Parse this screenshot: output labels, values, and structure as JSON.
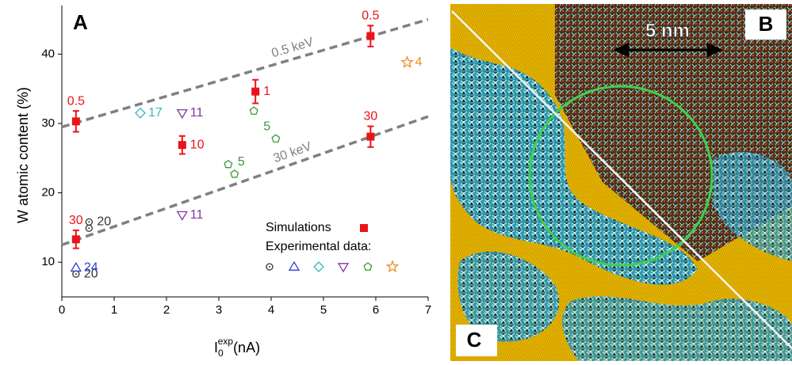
{
  "chart_data": {
    "type": "scatter",
    "panel_label": "A",
    "y_label": "W atomic content (%)",
    "x_label": {
      "base": "I",
      "sub": "0",
      "sup": "exp",
      "unit": "(nA)"
    },
    "xlim": [
      0,
      7
    ],
    "xticks": [
      0,
      1,
      2,
      3,
      4,
      5,
      6,
      7
    ],
    "ylim": [
      5,
      47
    ],
    "yticks": [
      10,
      20,
      30,
      40
    ],
    "legend_group_title": "Experimental data:",
    "lines": [
      {
        "name": "0.5 keV",
        "color": "#808080",
        "x": [
          0,
          7
        ],
        "y": [
          29.5,
          45
        ]
      },
      {
        "name": "30 keV",
        "color": "#808080",
        "x": [
          0,
          7
        ],
        "y": [
          12.5,
          31
        ]
      }
    ],
    "series": [
      {
        "name": "Simulations",
        "color": "#e8141a",
        "marker": "square",
        "x": [
          0.27,
          0.27,
          2.3,
          3.7,
          5.9,
          5.9
        ],
        "values": [
          30.3,
          13.3,
          26.9,
          34.6,
          42.6,
          28.1
        ],
        "errors": [
          1.5,
          1.3,
          1.3,
          1.7,
          1.5,
          1.5
        ],
        "point_labels": [
          "0.5",
          "30",
          "10",
          "1",
          "0.5",
          "30"
        ]
      },
      {
        "color": "#333333",
        "marker": "circle",
        "x": [
          0.27,
          0.52,
          0.52
        ],
        "values": [
          8.3,
          14.9,
          15.8
        ],
        "point_labels": [
          "20",
          null,
          "20"
        ]
      },
      {
        "color": "#2f3fd0",
        "marker": "triangle",
        "x": [
          0.27
        ],
        "values": [
          9.2
        ],
        "point_labels": [
          "24"
        ]
      },
      {
        "color": "#38b8b8",
        "marker": "diamond",
        "x": [
          1.5
        ],
        "values": [
          31.5
        ],
        "point_labels": [
          "17"
        ]
      },
      {
        "color": "#7a3a9a",
        "marker": "triangle-down",
        "x": [
          2.3,
          2.3
        ],
        "values": [
          31.5,
          16.8
        ],
        "point_labels": [
          "11",
          "11"
        ]
      },
      {
        "color": "#3a9a3a",
        "marker": "pentagon",
        "x": [
          3.67,
          4.09,
          3.18,
          3.3
        ],
        "values": [
          31.8,
          27.8,
          24.1,
          22.7
        ],
        "point_labels": [
          "5",
          null,
          "5",
          null
        ]
      },
      {
        "color": "#f08c28",
        "marker": "star",
        "x": [
          6.6
        ],
        "values": [
          38.8
        ],
        "point_labels": [
          "4"
        ]
      }
    ]
  },
  "image_panel": {
    "labels": [
      "B",
      "C"
    ],
    "scale_bar": "5 nm"
  }
}
